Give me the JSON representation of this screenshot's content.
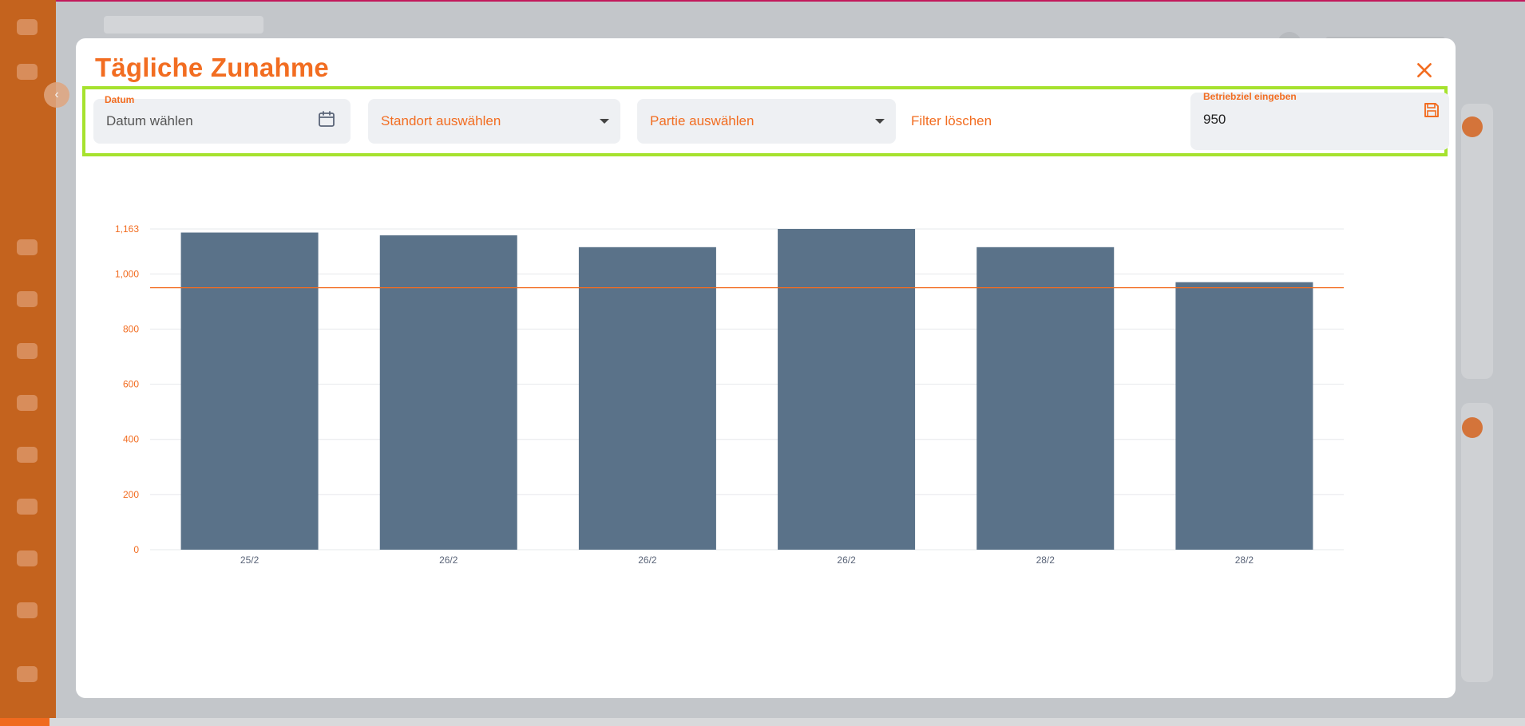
{
  "modal": {
    "title": "Tägliche Zunahme",
    "close_icon": "close-icon"
  },
  "filters": {
    "date": {
      "label": "Datum",
      "placeholder": "Datum wählen",
      "icon": "calendar-icon"
    },
    "standort": {
      "value": "Standort auswählen",
      "icon": "caret-down-icon"
    },
    "partie": {
      "value": "Partie auswählen",
      "icon": "caret-down-icon"
    },
    "clear_label": "Filter löschen",
    "goal": {
      "label": "Betriebziel eingeben",
      "value": "950",
      "icon": "save-icon"
    }
  },
  "chart_data": {
    "type": "bar",
    "categories": [
      "25/2",
      "26/2",
      "26/2",
      "26/2",
      "28/2",
      "28/2"
    ],
    "values": [
      1150,
      1140,
      1097,
      1163,
      1097,
      970
    ],
    "ylim": [
      0,
      1163
    ],
    "yticks": [
      0,
      200,
      400,
      600,
      800,
      1000,
      1163
    ],
    "ytick_labels": [
      "0",
      "200",
      "400",
      "600",
      "800",
      "1,000",
      "1,163"
    ],
    "goal_line": 950,
    "bar_color": "#5a7289",
    "goal_color": "#f26d21",
    "grid": true
  },
  "colors": {
    "accent": "#f26d21",
    "highlight_border": "#a6e22e",
    "sidebar": "#c4631e"
  }
}
